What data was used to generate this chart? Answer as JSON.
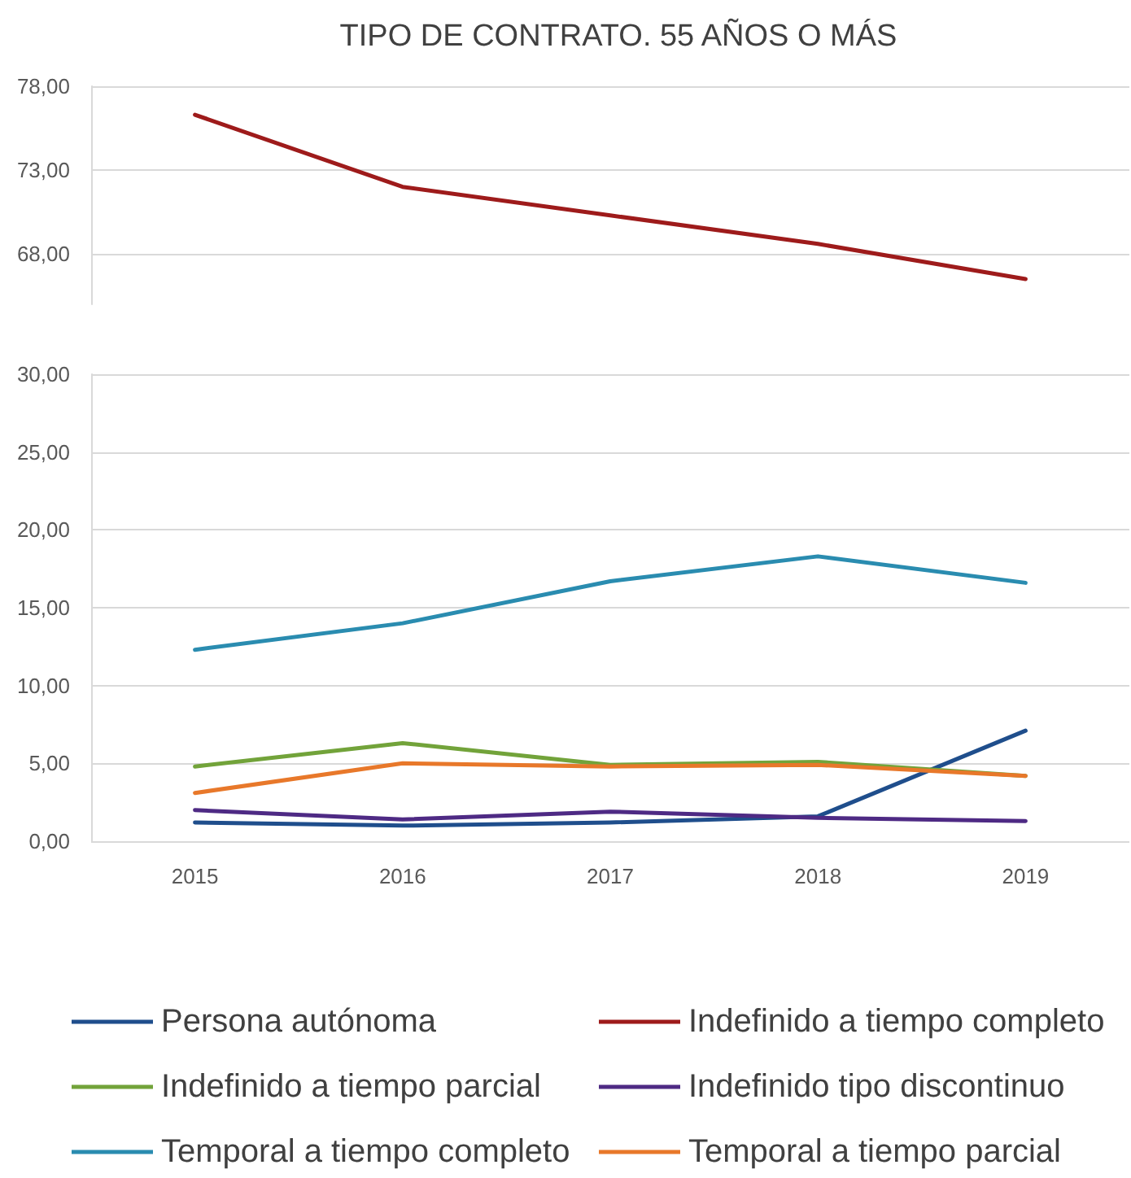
{
  "chart_data": [
    {
      "type": "line",
      "title": "TIPO DE CONTRATO. 55 AÑOS O MÁS",
      "categories": [
        "2015",
        "2016",
        "2017",
        "2018",
        "2019"
      ],
      "series": [
        {
          "name": "Indefinido a tiempo completo",
          "color": "#9e1b1b",
          "values": [
            76.3,
            72.0,
            70.3,
            68.6,
            66.5
          ]
        }
      ],
      "ylim": [
        65,
        78
      ],
      "yticks": [
        {
          "value": 68,
          "label": "68,00"
        },
        {
          "value": 73,
          "label": "73,00"
        },
        {
          "value": 78,
          "label": "78,00"
        }
      ],
      "grid": "y",
      "legend": "bottom",
      "tick_labels": "y",
      "marker": "none",
      "line_style": "solid"
    },
    {
      "type": "line",
      "categories": [
        "2015",
        "2016",
        "2017",
        "2018",
        "2019"
      ],
      "series": [
        {
          "name": "Persona autónoma",
          "color": "#1f4e8c",
          "values": [
            1.2,
            1.0,
            1.2,
            1.6,
            7.1
          ]
        },
        {
          "name": "Indefinido a tiempo parcial",
          "color": "#72a33a",
          "values": [
            4.8,
            6.3,
            4.9,
            5.1,
            4.2
          ]
        },
        {
          "name": "Indefinido tipo discontinuo",
          "color": "#4e2a84",
          "values": [
            2.0,
            1.4,
            1.9,
            1.5,
            1.3
          ]
        },
        {
          "name": "Temporal a tiempo completo",
          "color": "#2a8cb0",
          "values": [
            12.3,
            14.0,
            16.7,
            18.3,
            16.6
          ]
        },
        {
          "name": "Temporal a tiempo parcial",
          "color": "#e8782a",
          "values": [
            3.1,
            5.0,
            4.8,
            4.9,
            4.2
          ]
        }
      ],
      "ylim": [
        0,
        30
      ],
      "yticks": [
        {
          "value": 0,
          "label": "0,00"
        },
        {
          "value": 5,
          "label": "5,00"
        },
        {
          "value": 10,
          "label": "10,00"
        },
        {
          "value": 15,
          "label": "15,00"
        },
        {
          "value": 20,
          "label": "20,00"
        },
        {
          "value": 25,
          "label": "25,00"
        },
        {
          "value": 30,
          "label": "30,00"
        }
      ],
      "grid": "y",
      "legend": "bottom",
      "marker": "none",
      "line_style": "solid"
    }
  ]
}
